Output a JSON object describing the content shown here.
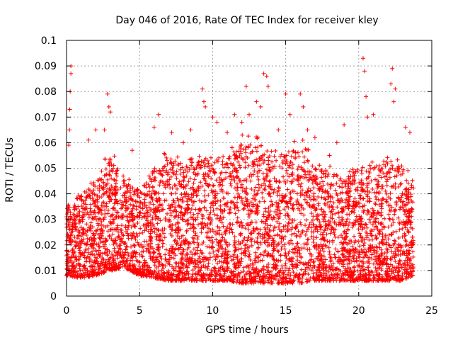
{
  "chart_data": {
    "type": "scatter",
    "title": "Day 046 of 2016, Rate Of TEC Index for receiver kley",
    "xlabel": "GPS time / hours",
    "ylabel": "ROTI / TECUs",
    "xlim": [
      0,
      25
    ],
    "ylim": [
      0,
      0.1
    ],
    "xticks": [
      0,
      5,
      10,
      15,
      20,
      25
    ],
    "yticks": [
      0,
      0.01,
      0.02,
      0.03,
      0.04,
      0.05,
      0.06,
      0.07,
      0.08,
      0.09,
      0.1
    ],
    "xtick_labels": [
      "0",
      "5",
      "10",
      "15",
      "20",
      "25"
    ],
    "ytick_labels": [
      "0",
      "0.01",
      "0.02",
      "0.03",
      "0.04",
      "0.05",
      "0.06",
      "0.07",
      "0.08",
      "0.09",
      "0.1"
    ],
    "grid": true,
    "marker": "+",
    "color": "#ff0000",
    "data_x_range": [
      0,
      23.75
    ],
    "series": [
      {
        "name": "ROTI",
        "band_x": [
          0,
          1,
          2,
          3,
          4,
          5,
          6,
          7,
          8,
          9,
          10,
          11,
          12,
          13,
          14,
          15,
          16,
          17,
          18,
          19,
          20,
          21,
          22,
          23,
          23.75
        ],
        "band_low": [
          0.008,
          0.007,
          0.008,
          0.01,
          0.011,
          0.008,
          0.007,
          0.006,
          0.006,
          0.006,
          0.006,
          0.006,
          0.005,
          0.005,
          0.005,
          0.005,
          0.005,
          0.006,
          0.006,
          0.006,
          0.006,
          0.006,
          0.006,
          0.006,
          0.008
        ],
        "band_high": [
          0.035,
          0.04,
          0.045,
          0.055,
          0.045,
          0.04,
          0.05,
          0.055,
          0.05,
          0.055,
          0.055,
          0.055,
          0.06,
          0.06,
          0.055,
          0.055,
          0.06,
          0.05,
          0.05,
          0.045,
          0.05,
          0.05,
          0.055,
          0.05,
          0.045
        ],
        "outliers": [
          [
            0.15,
            0.059
          ],
          [
            0.2,
            0.065
          ],
          [
            0.25,
            0.08
          ],
          [
            0.3,
            0.087
          ],
          [
            0.3,
            0.09
          ],
          [
            0.22,
            0.073
          ],
          [
            1.5,
            0.061
          ],
          [
            2.0,
            0.065
          ],
          [
            2.6,
            0.065
          ],
          [
            2.8,
            0.079
          ],
          [
            2.9,
            0.074
          ],
          [
            3.0,
            0.072
          ],
          [
            4.5,
            0.057
          ],
          [
            6.0,
            0.066
          ],
          [
            6.3,
            0.071
          ],
          [
            7.2,
            0.064
          ],
          [
            8.0,
            0.06
          ],
          [
            8.5,
            0.065
          ],
          [
            9.3,
            0.081
          ],
          [
            9.4,
            0.076
          ],
          [
            9.5,
            0.074
          ],
          [
            10.0,
            0.07
          ],
          [
            10.3,
            0.068
          ],
          [
            11.0,
            0.064
          ],
          [
            11.5,
            0.071
          ],
          [
            12.0,
            0.068
          ],
          [
            12.3,
            0.082
          ],
          [
            12.5,
            0.071
          ],
          [
            13.0,
            0.076
          ],
          [
            13.3,
            0.074
          ],
          [
            13.5,
            0.087
          ],
          [
            13.7,
            0.086
          ],
          [
            13.8,
            0.082
          ],
          [
            14.5,
            0.065
          ],
          [
            15.0,
            0.079
          ],
          [
            15.3,
            0.071
          ],
          [
            16.0,
            0.079
          ],
          [
            16.2,
            0.074
          ],
          [
            16.5,
            0.065
          ],
          [
            17.0,
            0.062
          ],
          [
            18.0,
            0.055
          ],
          [
            18.5,
            0.06
          ],
          [
            19.0,
            0.067
          ],
          [
            20.3,
            0.093
          ],
          [
            20.4,
            0.088
          ],
          [
            20.5,
            0.078
          ],
          [
            20.6,
            0.07
          ],
          [
            21.0,
            0.071
          ],
          [
            22.2,
            0.083
          ],
          [
            22.3,
            0.089
          ],
          [
            22.5,
            0.081
          ],
          [
            22.4,
            0.076
          ],
          [
            23.2,
            0.066
          ],
          [
            23.5,
            0.064
          ]
        ]
      }
    ]
  }
}
